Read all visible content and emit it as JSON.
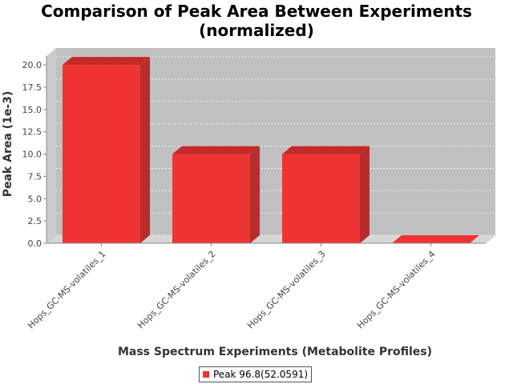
{
  "chart_data": {
    "type": "bar",
    "title_line1": "Comparison of Peak Area Between Experiments",
    "title_line2": "(normalized)",
    "xlabel": "Mass Spectrum Experiments (Metabolite Profiles)",
    "ylabel": "Peak Area (1e-3)",
    "categories": [
      "Hops_GC-MS-volatiles_1",
      "Hops_GC-MS-volatiles_2",
      "Hops_GC-MS-volatiles_3",
      "Hops_GC-MS-volatiles_4"
    ],
    "series": [
      {
        "name": "Peak 96.8(52.0591)",
        "values": [
          20.0,
          10.0,
          10.0,
          0.0
        ]
      }
    ],
    "ylim": [
      0,
      21
    ],
    "yticks": [
      "0.0",
      "2.5",
      "5.0",
      "7.5",
      "10.0",
      "12.5",
      "15.0",
      "17.5",
      "20.0"
    ],
    "grid": true,
    "legend_position": "bottom",
    "colors": {
      "bar_front": "#ef3434",
      "bar_top": "#c42a2a",
      "bar_side": "#b82c2c",
      "plot_bg": "#c0c0c0",
      "floor": "#d6d6d6"
    }
  }
}
